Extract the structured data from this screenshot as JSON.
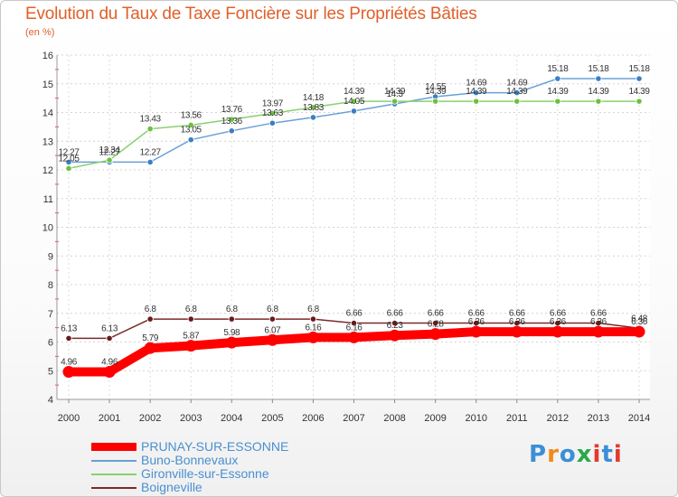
{
  "title": "Evolution du Taux de Taxe Foncière sur les Propriétés Bâties",
  "unit": "(en %)",
  "logo": {
    "letters": [
      "P",
      "r",
      "o",
      "x",
      "i",
      "t",
      "i"
    ],
    "colors": [
      "#3a8fd8",
      "#f08a1a",
      "#3a8fd8",
      "#2aa84a",
      "#e23a2a",
      "#3a8fd8",
      "#e23a2a"
    ]
  },
  "chart_data": {
    "type": "line",
    "title": "Evolution du Taux de Taxe Foncière sur les Propriétés Bâties",
    "ylabel": "(en %)",
    "xlabel": "",
    "ylim": [
      4,
      16
    ],
    "yticks": [
      "4",
      "5",
      "6",
      "7",
      "8",
      "9",
      "10",
      "11",
      "12",
      "13",
      "14",
      "15",
      "16"
    ],
    "x": [
      "2000",
      "2001",
      "2002",
      "2003",
      "2004",
      "2005",
      "2006",
      "2007",
      "2008",
      "2009",
      "2010",
      "2011",
      "2012",
      "2013",
      "2014"
    ],
    "grid": true,
    "legend": "bottom-left",
    "series": [
      {
        "name": "Buno-Bonnevaux",
        "color": "#6aa0d8",
        "marker": "#3a7fc4",
        "values": [
          12.27,
          12.27,
          12.27,
          13.05,
          13.36,
          13.63,
          13.83,
          14.05,
          14.3,
          14.55,
          14.69,
          14.69,
          15.18,
          15.18,
          15.18
        ],
        "labels": [
          "12.27",
          "12.27",
          "12.27",
          "13.05",
          "13.36",
          "13.63",
          "13.83",
          "14.05",
          "14.3",
          "14.55",
          "14.69",
          "14.69",
          "15.18",
          "15.18",
          "15.18"
        ]
      },
      {
        "name": "Gironville-sur-Essonne",
        "color": "#8ad070",
        "marker": "#6cc040",
        "values": [
          12.05,
          12.34,
          13.43,
          13.56,
          13.76,
          13.97,
          14.18,
          14.39,
          14.39,
          14.39,
          14.39,
          14.39,
          14.39,
          14.39,
          14.39
        ],
        "labels": [
          "12.05",
          "12.34",
          "13.43",
          "13.56",
          "13.76",
          "13.97",
          "14.18",
          "14.39",
          "14.39",
          "14.39",
          "14.39",
          "14.39",
          "14.39",
          "14.39",
          "14.39"
        ]
      },
      {
        "name": "Boigneville",
        "color": "#7a2a2a",
        "marker": "#6a1a1a",
        "values": [
          6.13,
          6.13,
          6.8,
          6.8,
          6.8,
          6.8,
          6.8,
          6.66,
          6.66,
          6.66,
          6.66,
          6.66,
          6.66,
          6.66,
          6.48
        ],
        "labels": [
          "6.13",
          "6.13",
          "6.8",
          "6.8",
          "6.8",
          "6.8",
          "6.8",
          "6.66",
          "6.66",
          "6.66",
          "6.66",
          "6.66",
          "6.66",
          "6.66",
          "6.48"
        ]
      },
      {
        "name": "PRUNAY-SUR-ESSONNE",
        "color": "#ff0000",
        "marker": "#ff0000",
        "values": [
          4.96,
          4.96,
          5.79,
          5.87,
          5.98,
          6.07,
          6.16,
          6.16,
          6.23,
          6.28,
          6.36,
          6.36,
          6.36,
          6.36,
          6.36
        ],
        "labels": [
          "4.96",
          "4.96",
          "5.79",
          "5.87",
          "5.98",
          "6.07",
          "6.16",
          "6.16",
          "6.23",
          "6.28",
          "6.36",
          "6.36",
          "6.36",
          "6.36",
          "6.36"
        ]
      }
    ]
  },
  "legend": [
    {
      "label": "PRUNAY-SUR-ESSONNE",
      "color": "#ff0000",
      "thick": true
    },
    {
      "label": "Buno-Bonnevaux",
      "color": "#6aa0d8",
      "thick": false
    },
    {
      "label": "Gironville-sur-Essonne",
      "color": "#8ad070",
      "thick": false
    },
    {
      "label": "Boigneville",
      "color": "#7a2a2a",
      "thick": false
    }
  ]
}
